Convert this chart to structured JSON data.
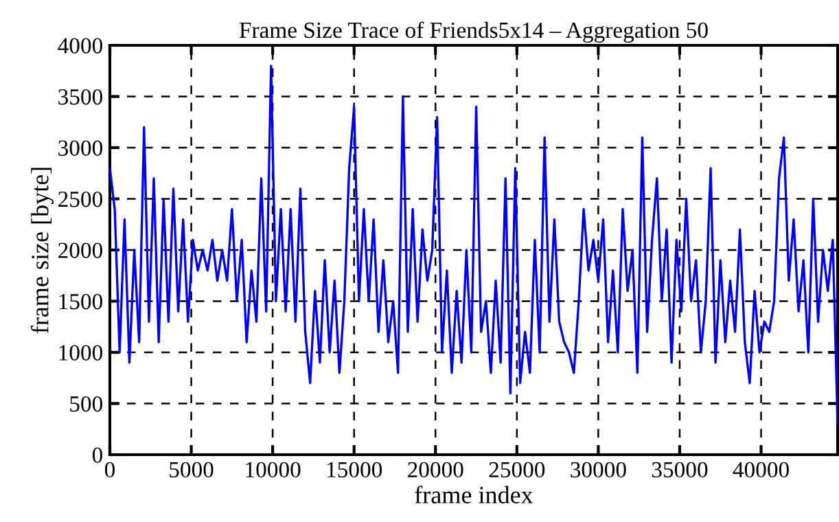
{
  "chart_data": {
    "type": "line",
    "title": "Frame Size Trace of Friends5x14 – Aggregation 50",
    "xlabel": "frame index",
    "ylabel": "frame size [byte]",
    "xlim": [
      0,
      44700
    ],
    "ylim": [
      0,
      4000
    ],
    "xticks": [
      0,
      5000,
      10000,
      15000,
      20000,
      25000,
      30000,
      35000,
      40000
    ],
    "yticks": [
      0,
      500,
      1000,
      1500,
      2000,
      2500,
      3000,
      3500,
      4000
    ],
    "grid": true,
    "legend": false,
    "series": [
      {
        "color": "#0000ff",
        "x": [
          0,
          300,
          600,
          900,
          1200,
          1500,
          1800,
          2100,
          2400,
          2700,
          3000,
          3300,
          3600,
          3900,
          4200,
          4500,
          4800,
          5100,
          5400,
          5700,
          6000,
          6300,
          6600,
          6900,
          7200,
          7500,
          7800,
          8100,
          8400,
          8700,
          9000,
          9300,
          9600,
          9900,
          10200,
          10500,
          10800,
          11100,
          11400,
          11700,
          12000,
          12300,
          12600,
          12900,
          13200,
          13500,
          13800,
          14100,
          14400,
          14700,
          15000,
          15300,
          15600,
          15900,
          16200,
          16500,
          16800,
          17100,
          17400,
          17700,
          18000,
          18300,
          18600,
          18900,
          19200,
          19500,
          19800,
          20100,
          20400,
          20700,
          21000,
          21300,
          21600,
          21900,
          22200,
          22500,
          22800,
          23100,
          23400,
          23700,
          24000,
          24300,
          24600,
          24900,
          25200,
          25500,
          25800,
          26100,
          26400,
          26700,
          27000,
          27300,
          27600,
          27900,
          28200,
          28500,
          28800,
          29100,
          29400,
          29700,
          30000,
          30300,
          30600,
          30900,
          31200,
          31500,
          31800,
          32100,
          32400,
          32700,
          33000,
          33300,
          33600,
          33900,
          34200,
          34500,
          34800,
          35100,
          35400,
          35700,
          36000,
          36300,
          36600,
          36900,
          37200,
          37500,
          37800,
          38100,
          38400,
          38700,
          39000,
          39300,
          39600,
          39900,
          40200,
          40500,
          40800,
          41100,
          41400,
          41700,
          42000,
          42300,
          42600,
          42900,
          43200,
          43500,
          43800,
          44100,
          44400,
          44700
        ],
        "values": [
          2800,
          2400,
          1000,
          2300,
          900,
          2000,
          1100,
          3200,
          1300,
          2700,
          1100,
          2500,
          1300,
          2600,
          1400,
          2300,
          1300,
          2100,
          1800,
          2000,
          1800,
          2100,
          1700,
          2000,
          1700,
          2400,
          1500,
          2100,
          1100,
          1800,
          1300,
          2700,
          1400,
          3800,
          1500,
          2400,
          1400,
          2400,
          1300,
          2600,
          1200,
          700,
          1600,
          900,
          1900,
          1000,
          1700,
          800,
          1500,
          2800,
          3400,
          1500,
          2400,
          1500,
          2300,
          1200,
          1900,
          1100,
          1500,
          800,
          3500,
          1200,
          2400,
          1300,
          2200,
          1700,
          2000,
          3300,
          1000,
          1800,
          800,
          1600,
          900,
          2000,
          1000,
          3400,
          1200,
          1500,
          800,
          1700,
          900,
          2700,
          600,
          2800,
          700,
          1200,
          800,
          2100,
          1000,
          3100,
          1300,
          2300,
          1300,
          1100,
          1000,
          800,
          1500,
          2400,
          1800,
          2100,
          1700,
          2300,
          1100,
          1800,
          1000,
          2400,
          1600,
          2000,
          800,
          3100,
          1200,
          2100,
          2700,
          1500,
          2200,
          900,
          2100,
          1400,
          2500,
          1500,
          1900,
          1000,
          1500,
          2800,
          900,
          1900,
          1100,
          1700,
          1200,
          2200,
          1100,
          700,
          1600,
          1000,
          1300,
          1200,
          1500,
          2700,
          3100,
          1700,
          2300,
          1400,
          1900,
          1000,
          2500,
          1300,
          2000,
          1600,
          2100,
          300
        ]
      }
    ]
  }
}
